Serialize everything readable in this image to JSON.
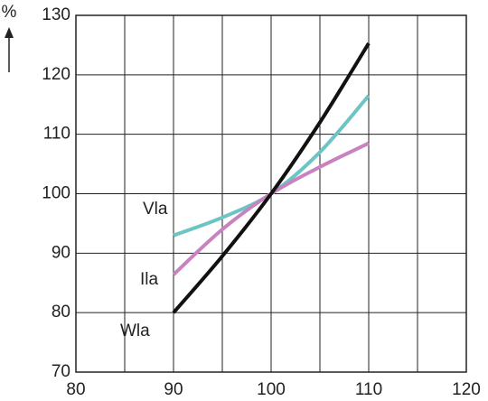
{
  "chart_data": {
    "type": "line",
    "y_label": "%",
    "x": [
      90,
      95,
      100,
      105,
      110
    ],
    "series": [
      {
        "name": "Vla",
        "color": "#6cc4c4",
        "values": [
          93,
          96,
          100,
          107,
          116.5
        ]
      },
      {
        "name": "Ila",
        "color": "#c882c0",
        "values": [
          86.4,
          94,
          100,
          104.5,
          108.5
        ]
      },
      {
        "name": "Wla",
        "color": "#111111",
        "values": [
          80,
          89.5,
          100,
          112,
          125.3
        ]
      }
    ],
    "xlim": [
      80,
      120
    ],
    "xticks": [
      80,
      90,
      100,
      110,
      120
    ],
    "xminor": [
      85,
      95,
      105,
      115
    ],
    "ylim": [
      70,
      130
    ],
    "yticks": [
      70,
      80,
      90,
      100,
      110,
      120,
      130
    ],
    "grid": true
  }
}
